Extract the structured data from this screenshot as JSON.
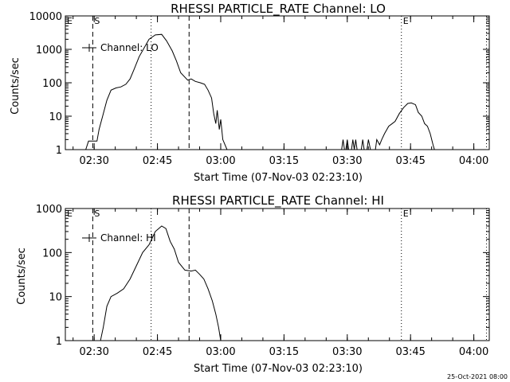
{
  "footer": {
    "timestamp": "25-Oct-2021 08:00"
  },
  "chart_data": [
    {
      "type": "line",
      "title": "RHESSI PARTICLE_RATE Channel: LO",
      "xlabel": "Start Time (07-Nov-03 02:23:10)",
      "ylabel": "Counts/sec",
      "y_scale": "log",
      "ylim": [
        1,
        10000
      ],
      "xlim": [
        "02:23:10",
        "04:03:40"
      ],
      "x_ticks": [
        "02:30",
        "02:45",
        "03:00",
        "03:15",
        "03:30",
        "03:45",
        "04:00"
      ],
      "y_ticks": [
        "1",
        "10",
        "100",
        "1000",
        "10000"
      ],
      "legend": {
        "label": "Channel: LO",
        "position": "top-left"
      },
      "markers": [
        {
          "label": "E",
          "time": "02:23:10",
          "style": "dotted"
        },
        {
          "label": "S",
          "time": "02:29:40",
          "style": "dashed"
        },
        {
          "label": "",
          "time": "02:43:30",
          "style": "dotted"
        },
        {
          "label": "",
          "time": "02:52:30",
          "style": "dashed"
        },
        {
          "label": "E",
          "time": "03:42:50",
          "style": "dotted"
        },
        {
          "label": "",
          "time": "04:03:00",
          "style": "dotted"
        }
      ],
      "series": [
        {
          "segments": [
            [
              [
                "02:28:00",
                1
              ],
              [
                "02:28:40",
                1.8
              ],
              [
                "02:30:40",
                1.8
              ],
              [
                "02:31:10",
                4
              ],
              [
                "02:32:00",
                10
              ],
              [
                "02:33:00",
                30
              ],
              [
                "02:34:00",
                60
              ],
              [
                "02:35:10",
                70
              ],
              [
                "02:36:20",
                75
              ],
              [
                "02:37:30",
                90
              ],
              [
                "02:38:30",
                130
              ],
              [
                "02:39:30",
                260
              ],
              [
                "02:40:40",
                600
              ],
              [
                "02:42:00",
                1200
              ],
              [
                "02:43:00",
                2000
              ],
              [
                "02:44:30",
                2700
              ],
              [
                "02:46:00",
                2800
              ],
              [
                "02:47:10",
                1800
              ],
              [
                "02:48:30",
                900
              ],
              [
                "02:49:30",
                450
              ],
              [
                "02:50:30",
                200
              ],
              [
                "02:52:10",
                120
              ],
              [
                "02:53:00",
                130
              ],
              [
                "02:54:00",
                110
              ],
              [
                "02:55:10",
                100
              ],
              [
                "02:56:10",
                90
              ],
              [
                "02:57:00",
                60
              ],
              [
                "02:57:50",
                35
              ],
              [
                "02:58:20",
                12
              ],
              [
                "02:58:50",
                6
              ],
              [
                "02:59:10",
                15
              ],
              [
                "02:59:40",
                4
              ],
              [
                "03:00:00",
                8
              ],
              [
                "03:00:30",
                2
              ],
              [
                "03:01:30",
                1
              ]
            ],
            [
              [
                "03:28:40",
                1
              ],
              [
                "03:29:00",
                2
              ],
              [
                "03:29:20",
                1
              ],
              [
                "03:29:40",
                1
              ],
              [
                "03:30:00",
                2
              ],
              [
                "03:30:20",
                1
              ],
              [
                "03:31:00",
                1
              ],
              [
                "03:31:20",
                2
              ],
              [
                "03:31:40",
                1
              ],
              [
                "03:32:00",
                2
              ],
              [
                "03:32:20",
                1
              ]
            ],
            [
              [
                "03:33:20",
                1
              ],
              [
                "03:33:40",
                2
              ],
              [
                "03:34:00",
                1
              ],
              [
                "03:34:40",
                1
              ],
              [
                "03:35:00",
                2
              ],
              [
                "03:35:30",
                1
              ]
            ],
            [
              [
                "03:36:40",
                1
              ],
              [
                "03:37:00",
                2
              ],
              [
                "03:37:40",
                1.4
              ],
              [
                "03:38:10",
                2
              ],
              [
                "03:38:50",
                3
              ],
              [
                "03:39:50",
                5
              ],
              [
                "03:40:40",
                6
              ],
              [
                "03:41:20",
                7
              ],
              [
                "03:42:20",
                12
              ],
              [
                "03:43:20",
                18
              ],
              [
                "03:44:20",
                24
              ],
              [
                "03:45:10",
                25
              ],
              [
                "03:46:10",
                22
              ],
              [
                "03:46:50",
                13
              ],
              [
                "03:47:40",
                10
              ],
              [
                "03:48:20",
                6
              ],
              [
                "03:49:00",
                5
              ],
              [
                "03:49:40",
                3
              ],
              [
                "03:50:20",
                1.4
              ],
              [
                "03:50:40",
                1
              ]
            ]
          ]
        }
      ]
    },
    {
      "type": "line",
      "title": "RHESSI PARTICLE_RATE Channel: HI",
      "xlabel": "Start Time (07-Nov-03 02:23:10)",
      "ylabel": "Counts/sec",
      "y_scale": "log",
      "ylim": [
        1,
        1000
      ],
      "xlim": [
        "02:23:10",
        "04:03:40"
      ],
      "x_ticks": [
        "02:30",
        "02:45",
        "03:00",
        "03:15",
        "03:30",
        "03:45",
        "04:00"
      ],
      "y_ticks": [
        "1",
        "10",
        "100",
        "1000"
      ],
      "legend": {
        "label": "Channel: HI",
        "position": "top-left"
      },
      "markers": [
        {
          "label": "E",
          "time": "02:23:10",
          "style": "dotted"
        },
        {
          "label": "S",
          "time": "02:29:40",
          "style": "dashed"
        },
        {
          "label": "",
          "time": "02:43:30",
          "style": "dotted"
        },
        {
          "label": "",
          "time": "02:52:30",
          "style": "dashed"
        },
        {
          "label": "E",
          "time": "03:42:50",
          "style": "dotted"
        },
        {
          "label": "",
          "time": "04:03:00",
          "style": "dotted"
        }
      ],
      "series": [
        {
          "segments": [
            [
              [
                "02:31:30",
                1
              ],
              [
                "02:32:10",
                2
              ],
              [
                "02:33:00",
                6
              ],
              [
                "02:34:00",
                10
              ],
              [
                "02:35:30",
                12
              ],
              [
                "02:37:00",
                15
              ],
              [
                "02:38:30",
                25
              ],
              [
                "02:40:00",
                50
              ],
              [
                "02:41:30",
                100
              ],
              [
                "02:43:00",
                150
              ],
              [
                "02:44:30",
                300
              ],
              [
                "02:46:00",
                400
              ],
              [
                "02:47:00",
                350
              ],
              [
                "02:48:00",
                180
              ],
              [
                "02:49:00",
                120
              ],
              [
                "02:50:00",
                60
              ],
              [
                "02:51:30",
                40
              ],
              [
                "02:53:00",
                38
              ],
              [
                "02:54:00",
                40
              ],
              [
                "02:55:00",
                32
              ],
              [
                "02:56:00",
                25
              ],
              [
                "02:57:00",
                15
              ],
              [
                "02:58:00",
                8
              ],
              [
                "02:58:50",
                4
              ],
              [
                "02:59:30",
                2
              ],
              [
                "03:00:00",
                1
              ]
            ]
          ]
        }
      ]
    }
  ]
}
